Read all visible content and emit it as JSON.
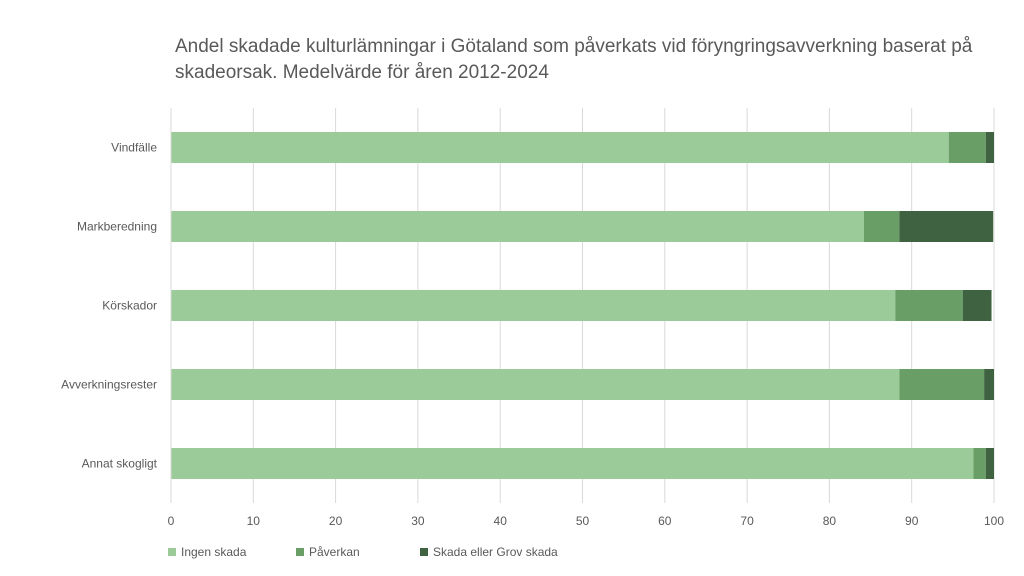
{
  "chart_data": {
    "type": "bar",
    "orientation": "horizontal",
    "stacked": true,
    "title": "Andel skadade kulturlämningar i Götaland som påverkats vid föryngringsavverkning baserat på skadeorsak. Medelvärde för åren 2012-2024",
    "categories": [
      "Vindfälle",
      "Markberedning",
      "Körskador",
      "Avverkningsrester",
      "Annat skogligt"
    ],
    "series": [
      {
        "name": "Ingen skada",
        "color": "#9bcb98",
        "values": [
          94.5,
          84.2,
          88.0,
          88.5,
          97.5
        ]
      },
      {
        "name": "Påverkan",
        "color": "#6a9e67",
        "values": [
          4.5,
          4.3,
          8.2,
          10.3,
          1.5
        ]
      },
      {
        "name": "Skada eller Grov skada",
        "color": "#3f6340",
        "values": [
          1.0,
          11.4,
          3.5,
          1.2,
          1.0
        ]
      }
    ],
    "xlim": [
      0,
      100
    ],
    "xticks": [
      "0",
      "10",
      "20",
      "30",
      "40",
      "50",
      "60",
      "70",
      "80",
      "90",
      "100"
    ],
    "grid": "vertical",
    "legend_position": "bottom-left"
  }
}
